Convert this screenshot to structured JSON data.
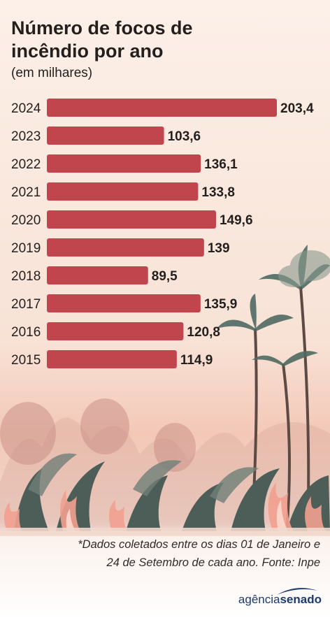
{
  "title": "Número de focos de incêndio por ano",
  "subtitle": "(em milhares)",
  "footnote_line1": "*Dados coletados entre os dias 01 de Janeiro e",
  "footnote_line2": "24 de Setembro de cada ano. Fonte: Inpe",
  "logo": {
    "part1": "agência",
    "part2": "senado"
  },
  "colors": {
    "bar": "#c0454c",
    "text": "#231f1e",
    "logo": "#1c3b72"
  },
  "chart_data": {
    "type": "bar",
    "orientation": "horizontal",
    "title": "Número de focos de incêndio por ano",
    "subtitle": "(em milhares)",
    "categories": [
      "2024",
      "2023",
      "2022",
      "2021",
      "2020",
      "2019",
      "2018",
      "2017",
      "2016",
      "2015"
    ],
    "values": [
      203.4,
      103.6,
      136.1,
      133.8,
      149.6,
      139,
      89.5,
      135.9,
      120.8,
      114.9
    ],
    "value_labels": [
      "203,4",
      "103,6",
      "136,1",
      "133,8",
      "149,6",
      "139",
      "89,5",
      "135,9",
      "120,8",
      "114,9"
    ],
    "grid": false,
    "legend": "none"
  }
}
